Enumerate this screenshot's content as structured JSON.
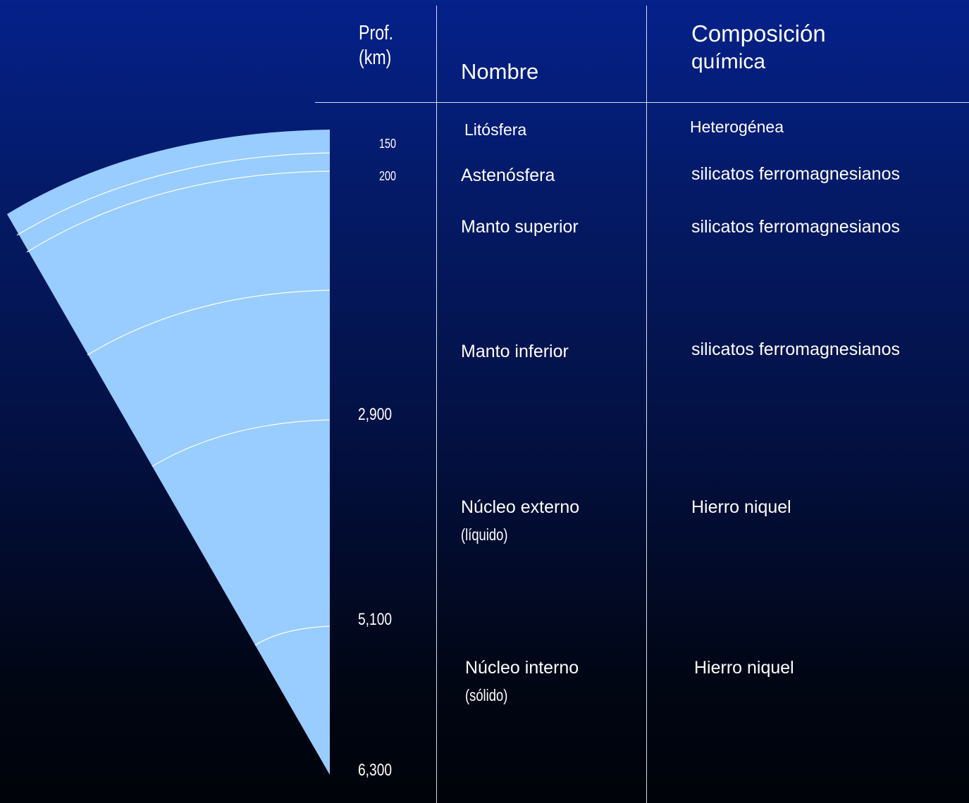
{
  "headers": {
    "depth_line1": "Prof.",
    "depth_line2": "(km)",
    "name": "Nombre",
    "composition_line1": "Composición",
    "composition_line2": "química"
  },
  "depths": [
    "150",
    "200",
    "2,900",
    "5,100",
    "6,300"
  ],
  "layers": [
    {
      "name": "Litósfera",
      "composition": "Heterogénea"
    },
    {
      "name": "Astenósfera",
      "composition": "silicatos ferromagnesianos"
    },
    {
      "name": "Manto superior",
      "composition": "silicatos ferromagnesianos"
    },
    {
      "name": "Manto inferior",
      "composition": "silicatos ferromagnesianos"
    },
    {
      "name": "Núcleo externo",
      "state": "(líquido)",
      "composition": "Hierro niquel"
    },
    {
      "name": "Núcleo interno",
      "state": "(sólido)",
      "composition": "Hierro niquel"
    }
  ],
  "colors": {
    "wedge_fill": "#99ccff",
    "boundary_line": "#ffffff",
    "background_top": "#05218a",
    "background_bottom": "#000309"
  }
}
